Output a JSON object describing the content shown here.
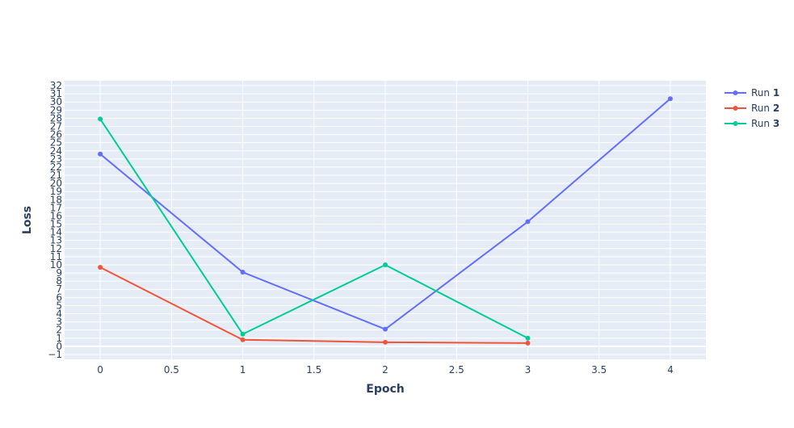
{
  "chart_data": {
    "type": "line",
    "xlabel": "Epoch",
    "ylabel": "Loss",
    "xlim": [
      -0.25,
      4.25
    ],
    "ylim": [
      -1.6,
      32.6
    ],
    "x_ticks": [
      0,
      0.5,
      1,
      1.5,
      2,
      2.5,
      3,
      3.5,
      4
    ],
    "x_tick_labels": [
      "0",
      "0.5",
      "1",
      "1.5",
      "2",
      "2.5",
      "3",
      "3.5",
      "4"
    ],
    "y_ticks": [
      -1,
      0,
      1,
      2,
      3,
      4,
      5,
      6,
      7,
      8,
      9,
      10,
      11,
      12,
      13,
      14,
      15,
      16,
      17,
      18,
      19,
      20,
      21,
      22,
      23,
      24,
      25,
      26,
      27,
      28,
      29,
      30,
      31,
      32
    ],
    "y_tick_labels": [
      "−1",
      "0",
      "1",
      "2",
      "3",
      "4",
      "5",
      "6",
      "7",
      "8",
      "9",
      "10",
      "11",
      "12",
      "13",
      "14",
      "15",
      "16",
      "17",
      "18",
      "19",
      "20",
      "21",
      "22",
      "23",
      "24",
      "25",
      "26",
      "27",
      "28",
      "29",
      "30",
      "31",
      "32"
    ],
    "grid": true,
    "legend_position": "top-right",
    "series": [
      {
        "name": "Run 1",
        "name_prefix": "Run ",
        "name_number": "1",
        "color": "#636efa",
        "x": [
          0,
          1,
          2,
          3,
          4
        ],
        "y": [
          23.6,
          9.1,
          2.1,
          15.3,
          30.4
        ]
      },
      {
        "name": "Run 2",
        "name_prefix": "Run ",
        "name_number": "2",
        "color": "#ef553b",
        "x": [
          0,
          1,
          2,
          3
        ],
        "y": [
          9.7,
          0.8,
          0.5,
          0.4
        ]
      },
      {
        "name": "Run 3",
        "name_prefix": "Run ",
        "name_number": "3",
        "color": "#00cc96",
        "x": [
          0,
          1,
          2,
          3
        ],
        "y": [
          27.9,
          1.5,
          10.0,
          1.0
        ]
      }
    ]
  }
}
